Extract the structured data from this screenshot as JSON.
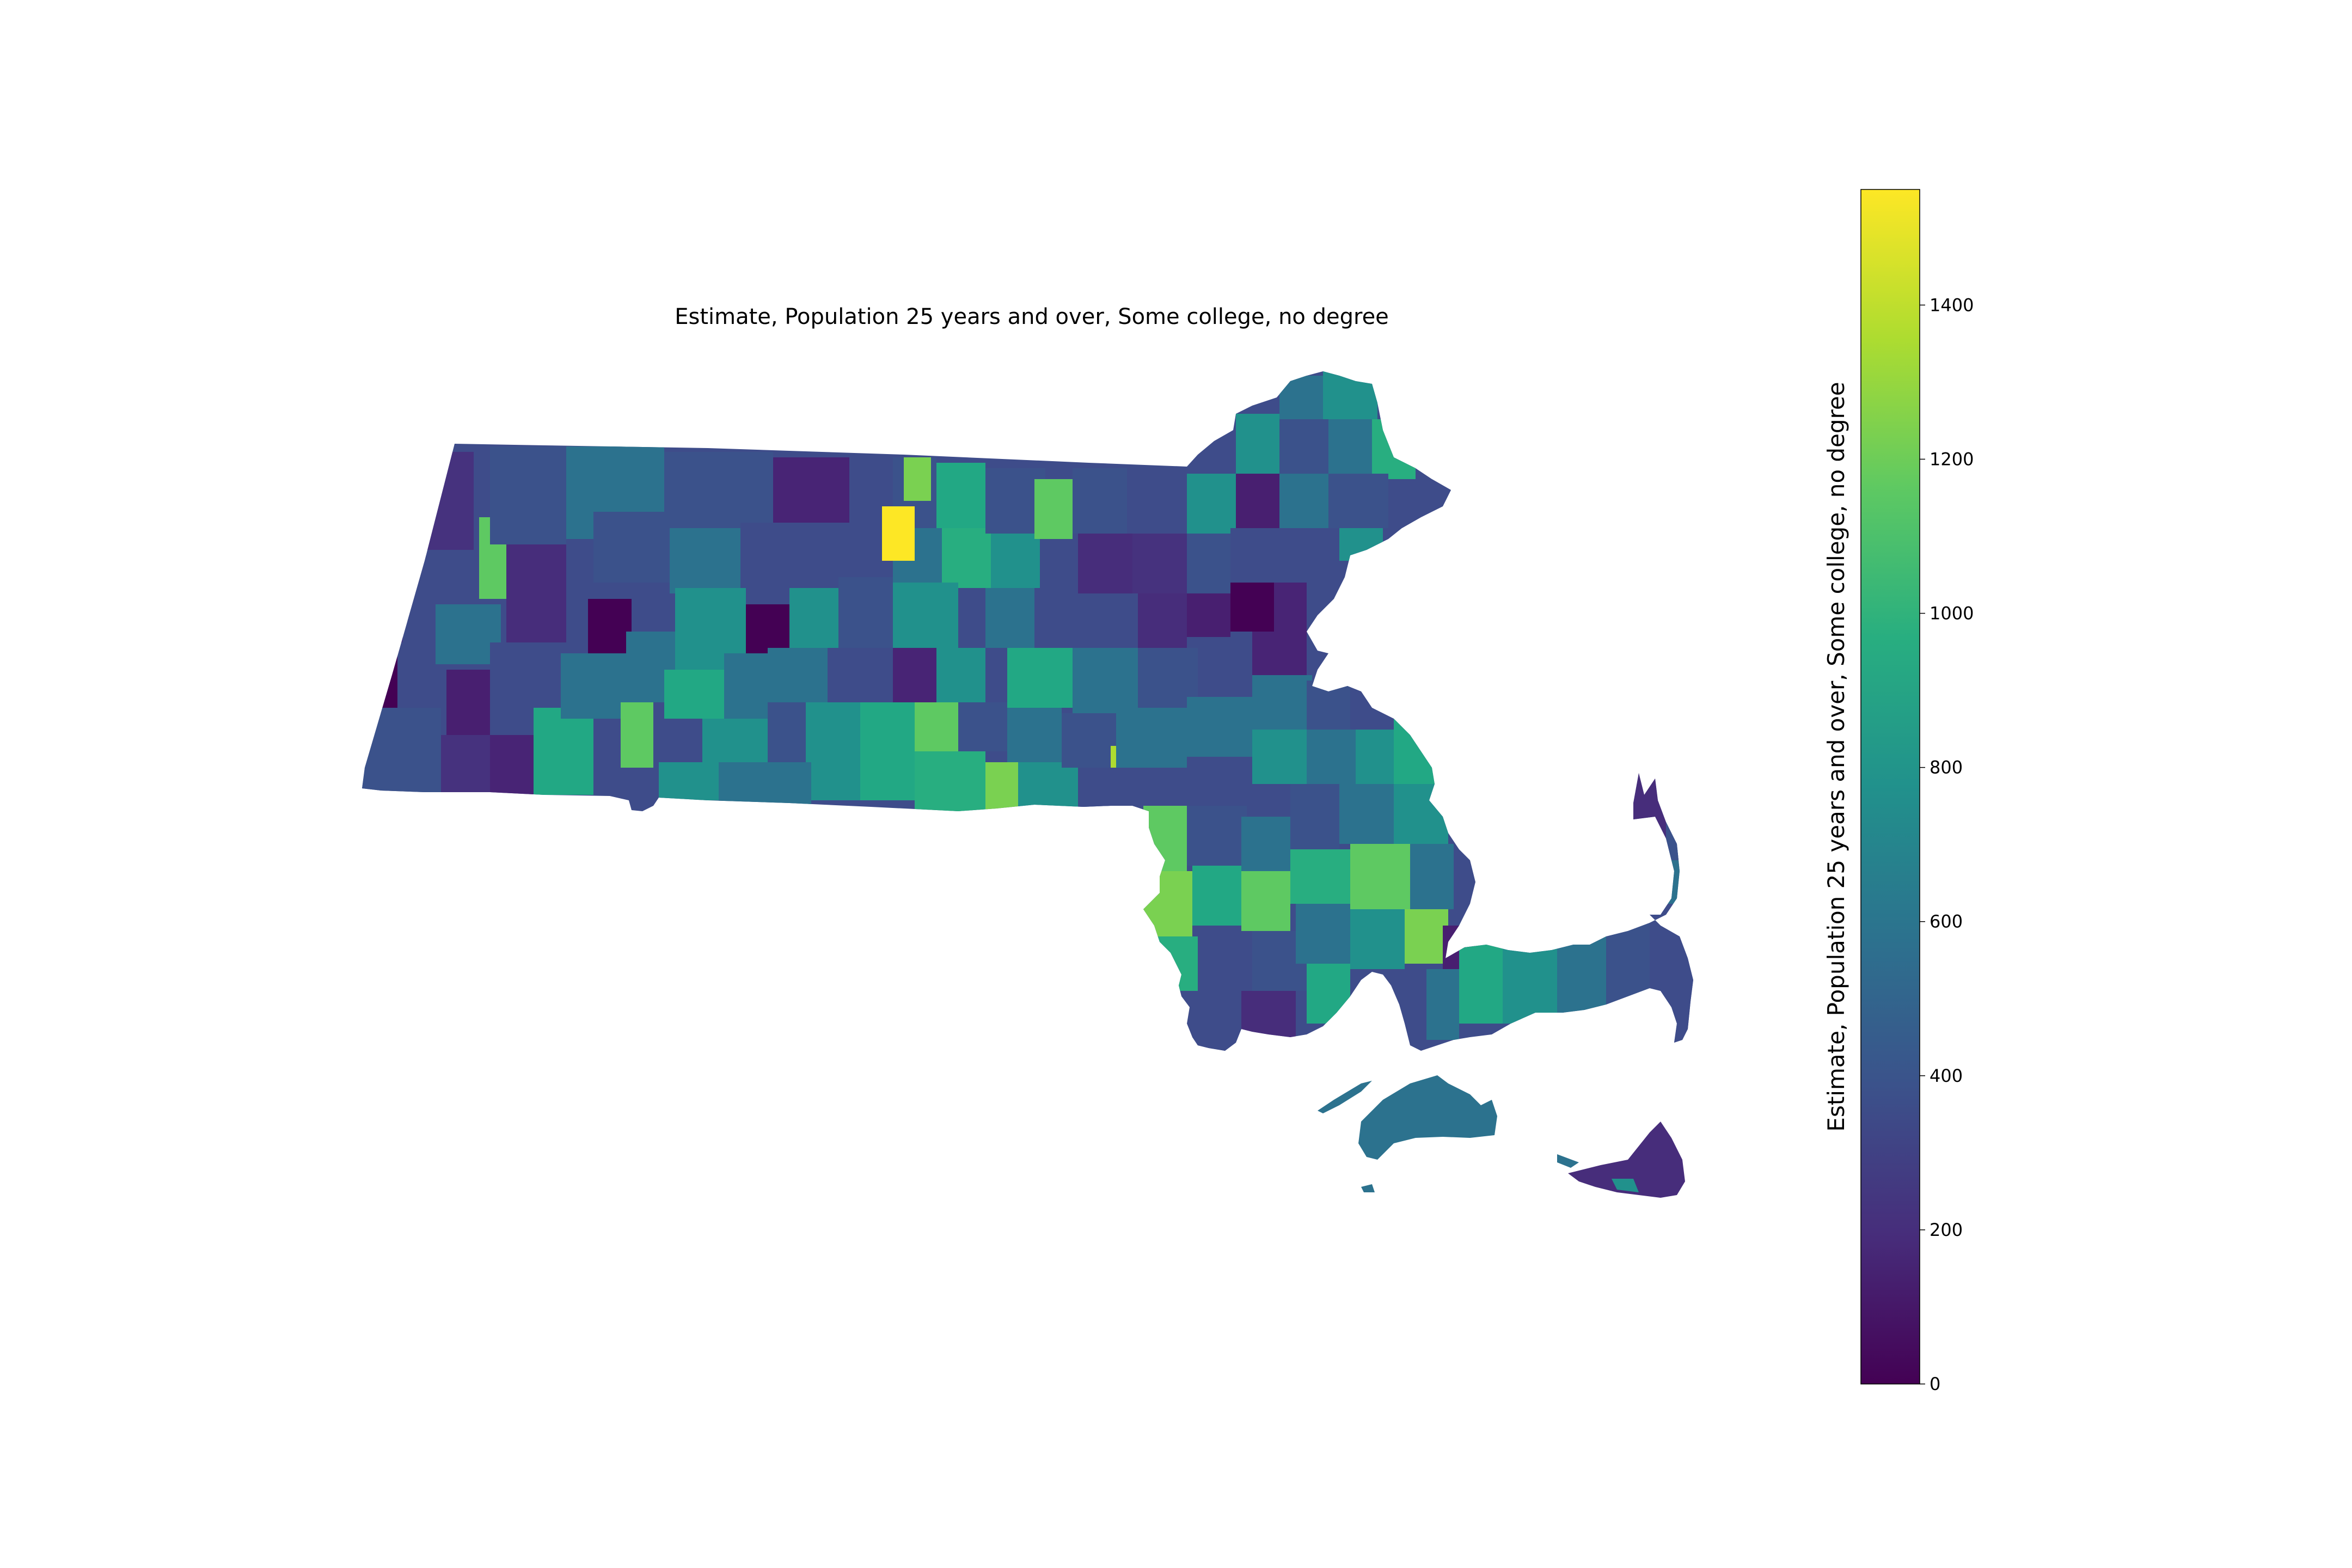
{
  "figure": {
    "title": "Estimate, Population 25 years and over, Some college, no degree"
  },
  "map": {
    "region": "Massachusetts",
    "unit": "census tract",
    "colormap": "viridis",
    "background": "#ffffff"
  },
  "colorbar": {
    "label": "Estimate, Population 25 years and over, Some college, no degree",
    "range": [
      0,
      1550
    ],
    "ticks": [
      {
        "value": 0,
        "label": "0"
      },
      {
        "value": 200,
        "label": "200"
      },
      {
        "value": 400,
        "label": "400"
      },
      {
        "value": 600,
        "label": "600"
      },
      {
        "value": 800,
        "label": "800"
      },
      {
        "value": 1000,
        "label": "1000"
      },
      {
        "value": 1200,
        "label": "1200"
      },
      {
        "value": 1400,
        "label": "1400"
      }
    ],
    "stops": [
      {
        "offset": 0.0,
        "color": "#440154"
      },
      {
        "offset": 0.125,
        "color": "#472d7b"
      },
      {
        "offset": 0.25,
        "color": "#3b528b"
      },
      {
        "offset": 0.375,
        "color": "#2c728e"
      },
      {
        "offset": 0.5,
        "color": "#21918c"
      },
      {
        "offset": 0.625,
        "color": "#28ae80"
      },
      {
        "offset": 0.75,
        "color": "#5ec962"
      },
      {
        "offset": 0.875,
        "color": "#addc30"
      },
      {
        "offset": 1.0,
        "color": "#fde725"
      }
    ]
  }
}
